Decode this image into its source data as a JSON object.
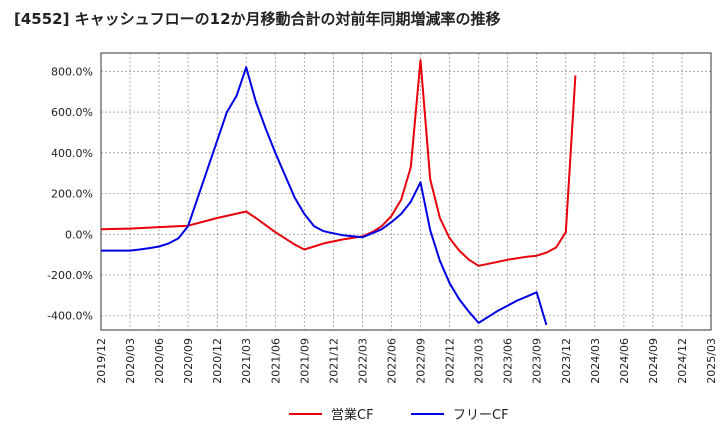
{
  "title": "[4552]  キャッシュフローの12か月移動合計の対前年同期増減率の推移",
  "chart_data": {
    "type": "line",
    "title": "[4552]  キャッシュフローの12か月移動合計の対前年同期増減率の推移",
    "xlabel": "",
    "ylabel": "",
    "x_ticks": [
      "2019/12",
      "2020/03",
      "2020/06",
      "2020/09",
      "2020/12",
      "2021/03",
      "2021/06",
      "2021/09",
      "2021/12",
      "2022/03",
      "2022/06",
      "2022/09",
      "2022/12",
      "2023/03",
      "2023/06",
      "2023/09",
      "2023/12",
      "2024/03",
      "2024/06",
      "2024/09",
      "2024/12",
      "2025/03"
    ],
    "y_ticks": [
      -400,
      -200,
      0,
      200,
      400,
      600,
      800
    ],
    "y_tick_labels": [
      "-400.0%",
      "-200.0%",
      "0.0%",
      "200.0%",
      "400.0%",
      "600.0%",
      "800.0%"
    ],
    "ylim": [
      -470,
      890
    ],
    "grid": true,
    "legend_position": "bottom",
    "series": [
      {
        "name": "営業CF",
        "color": "#e8000b",
        "x": [
          "2019/12",
          "2020/03",
          "2020/06",
          "2020/09",
          "2020/12",
          "2021/03",
          "2021/04",
          "2021/05",
          "2021/06",
          "2021/07",
          "2021/08",
          "2021/09",
          "2021/10",
          "2021/11",
          "2021/12",
          "2022/01",
          "2022/02",
          "2022/03",
          "2022/04",
          "2022/05",
          "2022/06",
          "2022/07",
          "2022/08",
          "2022/09",
          "2022/10",
          "2022/11",
          "2022/12",
          "2023/01",
          "2023/02",
          "2023/03",
          "2023/04",
          "2023/05",
          "2023/06",
          "2023/07",
          "2023/08",
          "2023/09",
          "2023/10",
          "2023/11",
          "2023/12",
          "2024/01"
        ],
        "values": [
          25,
          28,
          35,
          42,
          80,
          112,
          80,
          45,
          10,
          -20,
          -50,
          -75,
          -60,
          -45,
          -35,
          -25,
          -18,
          -10,
          10,
          40,
          90,
          170,
          330,
          855,
          270,
          80,
          -20,
          -80,
          -125,
          -155,
          -145,
          -135,
          -125,
          -118,
          -110,
          -105,
          -90,
          -65,
          10,
          780
        ]
      },
      {
        "name": "フリーCF",
        "color": "#0000e6",
        "x": [
          "2019/12",
          "2020/03",
          "2020/04",
          "2020/05",
          "2020/06",
          "2020/07",
          "2020/08",
          "2020/09",
          "2020/10",
          "2020/11",
          "2020/12",
          "2021/01",
          "2021/02",
          "2021/03",
          "2021/04",
          "2021/05",
          "2021/06",
          "2021/07",
          "2021/08",
          "2021/09",
          "2021/10",
          "2021/11",
          "2021/12",
          "2022/01",
          "2022/02",
          "2022/03",
          "2022/04",
          "2022/05",
          "2022/06",
          "2022/07",
          "2022/08",
          "2022/09",
          "2022/10",
          "2022/11",
          "2022/12",
          "2023/01",
          "2023/02",
          "2023/03",
          "2023/04",
          "2023/05",
          "2023/06",
          "2023/07",
          "2023/08",
          "2023/09",
          "2023/10"
        ],
        "values": [
          -80,
          -80,
          -75,
          -68,
          -60,
          -45,
          -20,
          40,
          180,
          320,
          460,
          600,
          680,
          820,
          650,
          520,
          400,
          290,
          180,
          100,
          40,
          15,
          5,
          -5,
          -10,
          -15,
          5,
          25,
          60,
          100,
          160,
          255,
          20,
          -130,
          -240,
          -320,
          -380,
          -435,
          -405,
          -375,
          -350,
          -325,
          -305,
          -285,
          -445
        ]
      }
    ]
  }
}
